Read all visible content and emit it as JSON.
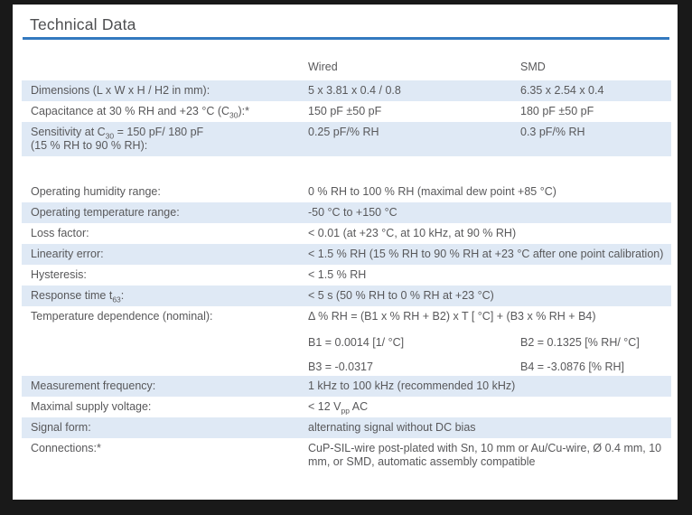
{
  "page": {
    "title": "Technical Data",
    "accent_color": "#3379bf",
    "row_highlight_color": "#dfe9f5",
    "text_color": "#58585a",
    "frame_color": "#191919"
  },
  "table": {
    "columns": [
      "",
      "Wired",
      "SMD"
    ],
    "rows": [
      {
        "bg": "blue",
        "cells": [
          {
            "segs": [
              "Dimensions (L x W x H / H2 in mm):"
            ]
          },
          {
            "segs": [
              "5 x 3.81 x 0.4 / 0.8"
            ]
          },
          {
            "segs": [
              "6.35 x 2.54 x 0.4"
            ]
          }
        ]
      },
      {
        "bg": "white",
        "cells": [
          {
            "segs": [
              "Capacitance at 30 % RH and +23 °C (C",
              {
                "sub": "30"
              },
              "):*"
            ]
          },
          {
            "segs": [
              "150 pF ±50 pF"
            ]
          },
          {
            "segs": [
              "180 pF ±50 pF"
            ]
          }
        ]
      },
      {
        "bg": "blue",
        "cells": [
          {
            "segs": [
              "Sensitivity at C",
              {
                "sub": "30"
              },
              " = 150 pF/ 180 pF",
              {
                "br": true
              },
              "(15 % RH to 90 % RH):"
            ]
          },
          {
            "segs": [
              "0.25 pF/% RH"
            ]
          },
          {
            "segs": [
              "0.3 pF/% RH"
            ]
          }
        ]
      },
      {
        "spacer": true
      },
      {
        "bg": "white",
        "cells": [
          {
            "segs": [
              "Operating humidity range:"
            ]
          },
          {
            "segs": [
              "0 % RH to 100 % RH (maximal dew point +85 °C)"
            ],
            "span": 2
          }
        ]
      },
      {
        "bg": "blue",
        "cells": [
          {
            "segs": [
              "Operating temperature range:"
            ]
          },
          {
            "segs": [
              "-50 °C to +150 °C"
            ],
            "span": 2
          }
        ]
      },
      {
        "bg": "white",
        "cells": [
          {
            "segs": [
              "Loss factor:"
            ]
          },
          {
            "segs": [
              "< 0.01 (at +23 °C, at 10 kHz, at 90 % RH)"
            ],
            "span": 2
          }
        ]
      },
      {
        "bg": "blue",
        "cells": [
          {
            "segs": [
              "Linearity error:"
            ]
          },
          {
            "segs": [
              "< 1.5 % RH (15 % RH to 90 % RH at +23 °C after one point calibration)"
            ],
            "span": 2
          }
        ]
      },
      {
        "bg": "white",
        "cells": [
          {
            "segs": [
              "Hysteresis:"
            ]
          },
          {
            "segs": [
              "< 1.5 % RH"
            ],
            "span": 2
          }
        ]
      },
      {
        "bg": "blue",
        "cells": [
          {
            "segs": [
              "Response time t",
              {
                "sub": "63"
              },
              ":"
            ]
          },
          {
            "segs": [
              "< 5 s (50 % RH to 0 % RH at +23 °C)"
            ],
            "span": 2
          }
        ]
      },
      {
        "bg": "white",
        "cells": [
          {
            "segs": [
              "Temperature dependence (nominal):"
            ]
          },
          {
            "segs": [
              "Δ % RH = (B1 x % RH + B2) x T [ °C] + (B3 x % RH + B4)"
            ],
            "span": 2
          }
        ]
      },
      {
        "bg": "white",
        "cells": [
          {
            "segs": [
              ""
            ]
          },
          {
            "segs": [
              "B1 = 0.0014 [1/ °C]"
            ]
          },
          {
            "segs": [
              "B2 = 0.1325 [% RH/ °C]"
            ]
          }
        ]
      },
      {
        "bg": "white",
        "cells": [
          {
            "segs": [
              ""
            ]
          },
          {
            "segs": [
              "B3 = -0.0317"
            ]
          },
          {
            "segs": [
              "B4 = -3.0876 [% RH]"
            ]
          }
        ]
      },
      {
        "bg": "blue",
        "cells": [
          {
            "segs": [
              "Measurement frequency:"
            ]
          },
          {
            "segs": [
              "1 kHz to 100 kHz (recommended 10 kHz)"
            ],
            "span": 2
          }
        ]
      },
      {
        "bg": "white",
        "cells": [
          {
            "segs": [
              "Maximal supply voltage:"
            ]
          },
          {
            "segs": [
              "< 12 V",
              {
                "sub": "pp"
              },
              " AC"
            ],
            "span": 2
          }
        ]
      },
      {
        "bg": "blue",
        "cells": [
          {
            "segs": [
              "Signal form:"
            ]
          },
          {
            "segs": [
              "alternating signal without DC bias"
            ],
            "span": 2
          }
        ]
      },
      {
        "bg": "white",
        "cells": [
          {
            "segs": [
              "Connections:*"
            ]
          },
          {
            "segs": [
              "CuP-SIL-wire post-plated with Sn, 10 mm or Au/Cu-wire, Ø 0.4 mm, 10 mm, or SMD, automatic assembly compatible"
            ],
            "span": 2
          }
        ]
      }
    ]
  }
}
